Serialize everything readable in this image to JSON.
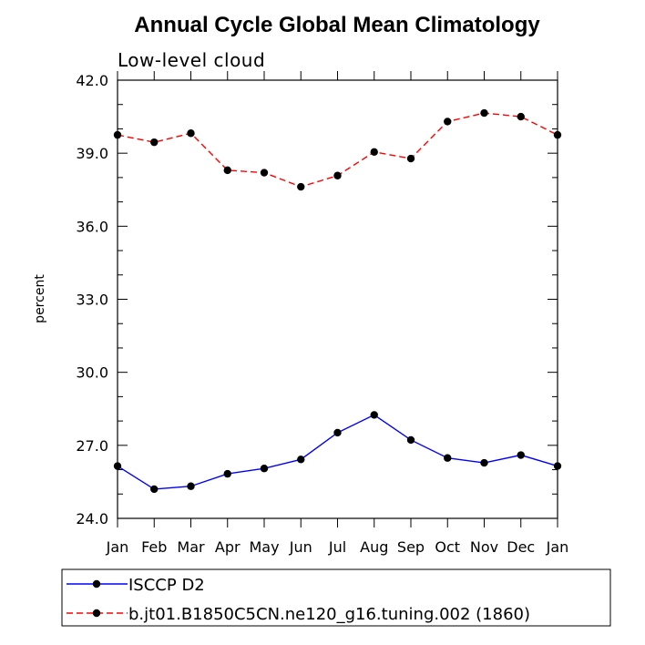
{
  "chart_data": {
    "type": "line",
    "title": "Annual Cycle Global Mean Climatology",
    "subtitle": "Low-level cloud",
    "xlabel": "",
    "ylabel": "percent",
    "categories": [
      "Jan",
      "Feb",
      "Mar",
      "Apr",
      "May",
      "Jun",
      "Jul",
      "Aug",
      "Sep",
      "Oct",
      "Nov",
      "Dec",
      "Jan"
    ],
    "ylim": [
      24.0,
      42.0
    ],
    "yticks": [
      "24.0",
      "27.0",
      "30.0",
      "33.0",
      "36.0",
      "39.0",
      "42.0"
    ],
    "grid": false,
    "legend_position": "bottom",
    "series": [
      {
        "name": "ISCCP D2",
        "color": "#0000ff",
        "dash": "solid",
        "values": [
          26.15,
          25.2,
          25.32,
          25.83,
          26.05,
          26.42,
          27.52,
          28.25,
          27.22,
          26.48,
          26.28,
          26.6,
          26.15
        ]
      },
      {
        "name": "b.jt01.B1850C5CN.ne120_g16.tuning.002 (1860)",
        "color": "#ff0000",
        "dash": "dashed",
        "values": [
          39.75,
          39.45,
          39.82,
          38.3,
          38.2,
          37.62,
          38.08,
          39.05,
          38.78,
          40.3,
          40.65,
          40.5,
          39.75
        ]
      }
    ]
  }
}
